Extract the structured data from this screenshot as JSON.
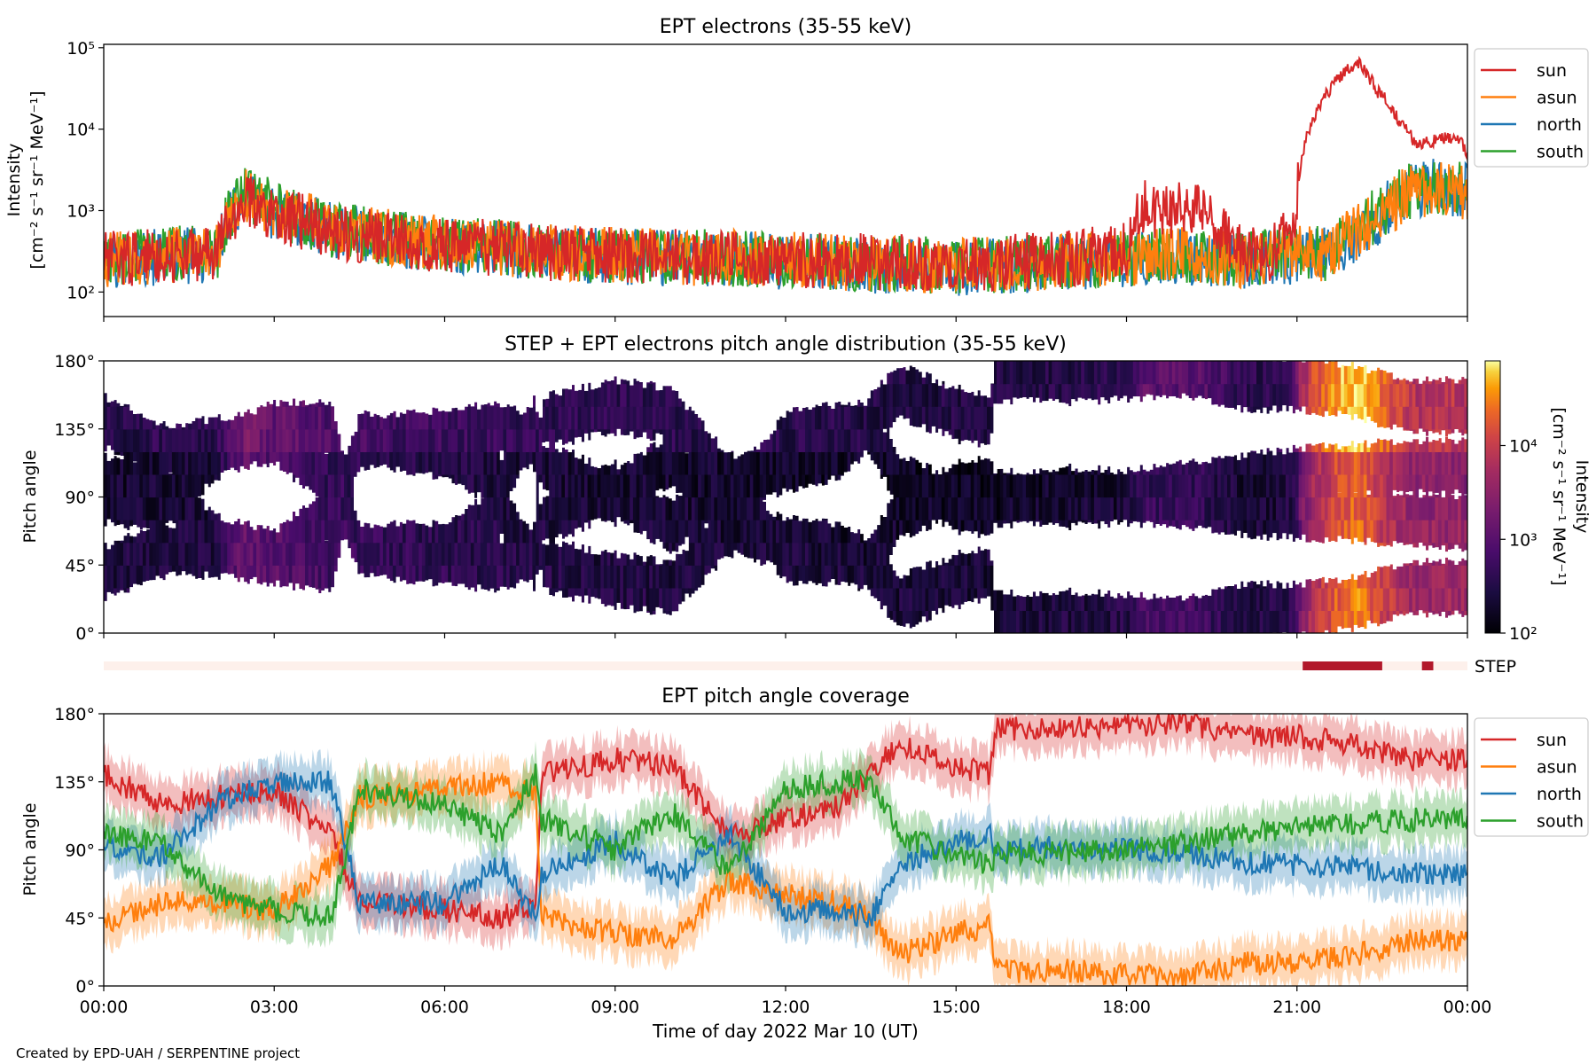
{
  "chart_data": [
    {
      "type": "line",
      "title": "EPT electrons (35-55 keV)",
      "ylabel_line1": "Intensity",
      "ylabel_line2": "[cm⁻² s⁻¹ sr⁻¹ MeV⁻¹]",
      "yscale": "log",
      "ylim": [
        50,
        110000
      ],
      "yticks": [
        {
          "value": 100,
          "label": "10²"
        },
        {
          "value": 1000,
          "label": "10³"
        },
        {
          "value": 10000,
          "label": "10⁴"
        },
        {
          "value": 100000,
          "label": "10⁵"
        }
      ],
      "xlim_hours": [
        0,
        24
      ],
      "legend_position": "outside-upper-right",
      "series": [
        {
          "name": "sun",
          "color": "#d62728",
          "points": [
            [
              0,
              250
            ],
            [
              1,
              280
            ],
            [
              2,
              300
            ],
            [
              2.5,
              1300
            ],
            [
              3,
              900
            ],
            [
              4,
              550
            ],
            [
              5,
              450
            ],
            [
              6,
              380
            ],
            [
              7,
              340
            ],
            [
              8,
              300
            ],
            [
              9,
              280
            ],
            [
              10,
              270
            ],
            [
              11,
              260
            ],
            [
              12,
              250
            ],
            [
              13,
              240
            ],
            [
              14,
              230
            ],
            [
              15,
              220
            ],
            [
              16,
              240
            ],
            [
              17,
              260
            ],
            [
              18,
              330
            ],
            [
              18.3,
              1100
            ],
            [
              18.7,
              900
            ],
            [
              19.1,
              1100
            ],
            [
              19.5,
              700
            ],
            [
              20,
              300
            ],
            [
              20.5,
              280
            ],
            [
              20.9,
              500
            ],
            [
              21,
              1200
            ],
            [
              21.2,
              9000
            ],
            [
              21.5,
              25000
            ],
            [
              21.8,
              48000
            ],
            [
              22.1,
              62000
            ],
            [
              22.4,
              30000
            ],
            [
              22.8,
              12000
            ],
            [
              23.1,
              6500
            ],
            [
              23.5,
              7500
            ],
            [
              23.8,
              8000
            ],
            [
              24,
              5000
            ]
          ]
        },
        {
          "name": "asun",
          "color": "#ff7f0e",
          "points": [
            [
              0,
              250
            ],
            [
              1,
              280
            ],
            [
              2,
              300
            ],
            [
              2.5,
              1500
            ],
            [
              3,
              1000
            ],
            [
              4,
              600
            ],
            [
              5,
              480
            ],
            [
              6,
              400
            ],
            [
              7,
              350
            ],
            [
              8,
              300
            ],
            [
              9,
              280
            ],
            [
              10,
              270
            ],
            [
              11,
              260
            ],
            [
              12,
              250
            ],
            [
              13,
              230
            ],
            [
              14,
              220
            ],
            [
              15,
              210
            ],
            [
              16,
              220
            ],
            [
              17,
              240
            ],
            [
              18,
              260
            ],
            [
              19,
              280
            ],
            [
              20,
              250
            ],
            [
              21,
              300
            ],
            [
              21.5,
              300
            ],
            [
              22,
              500
            ],
            [
              22.5,
              900
            ],
            [
              23,
              1700
            ],
            [
              23.5,
              1900
            ],
            [
              24,
              1700
            ]
          ]
        },
        {
          "name": "north",
          "color": "#1f77b4",
          "points": [
            [
              0,
              240
            ],
            [
              1,
              270
            ],
            [
              2,
              290
            ],
            [
              2.5,
              1400
            ],
            [
              3,
              950
            ],
            [
              4,
              560
            ],
            [
              5,
              450
            ],
            [
              6,
              380
            ],
            [
              7,
              340
            ],
            [
              8,
              290
            ],
            [
              9,
              270
            ],
            [
              10,
              260
            ],
            [
              11,
              250
            ],
            [
              12,
              240
            ],
            [
              13,
              220
            ],
            [
              14,
              210
            ],
            [
              15,
              200
            ],
            [
              16,
              210
            ],
            [
              17,
              230
            ],
            [
              18,
              250
            ],
            [
              19,
              270
            ],
            [
              20,
              240
            ],
            [
              21,
              280
            ],
            [
              21.5,
              280
            ],
            [
              22,
              480
            ],
            [
              22.5,
              900
            ],
            [
              23,
              1800
            ],
            [
              23.5,
              2000
            ],
            [
              24,
              1800
            ]
          ]
        },
        {
          "name": "south",
          "color": "#2ca02c",
          "points": [
            [
              0,
              260
            ],
            [
              1,
              290
            ],
            [
              2,
              310
            ],
            [
              2.5,
              1700
            ],
            [
              3,
              1000
            ],
            [
              4,
              580
            ],
            [
              5,
              460
            ],
            [
              6,
              390
            ],
            [
              7,
              350
            ],
            [
              8,
              300
            ],
            [
              9,
              280
            ],
            [
              10,
              270
            ],
            [
              11,
              260
            ],
            [
              12,
              250
            ],
            [
              13,
              230
            ],
            [
              14,
              220
            ],
            [
              15,
              210
            ],
            [
              16,
              220
            ],
            [
              17,
              240
            ],
            [
              18,
              260
            ],
            [
              19,
              280
            ],
            [
              20,
              250
            ],
            [
              21,
              290
            ],
            [
              21.5,
              290
            ],
            [
              22,
              520
            ],
            [
              22.5,
              950
            ],
            [
              23,
              1750
            ],
            [
              23.5,
              1950
            ],
            [
              24,
              1750
            ]
          ]
        }
      ]
    },
    {
      "type": "heatmap",
      "title": "STEP + EPT electrons pitch angle distribution (35-55 keV)",
      "ylabel": "Pitch angle",
      "ylim": [
        0,
        180
      ],
      "yticks": [
        "0°",
        "45°",
        "90°",
        "135°",
        "180°"
      ],
      "colorbar_label_line1": "Intensity",
      "colorbar_label_line2": "[cm⁻² s⁻¹ sr⁻¹ MeV⁻¹]",
      "colorbar_scale": "log",
      "colorbar_range": [
        100,
        80000
      ],
      "colorbar_ticks": [
        {
          "value": 100,
          "label": "10²"
        },
        {
          "value": 1000,
          "label": "10³"
        },
        {
          "value": 10000,
          "label": "10⁴"
        }
      ],
      "colormap": "inferno"
    },
    {
      "type": "bar",
      "label": "STEP",
      "intervals_hours": [
        [
          21.1,
          22.5
        ],
        [
          23.2,
          23.4
        ]
      ],
      "active_color": "#b2182b",
      "inactive_color": "#fdf0eb"
    },
    {
      "type": "area",
      "title": "EPT pitch angle coverage",
      "ylabel": "Pitch angle",
      "ylim": [
        0,
        180
      ],
      "yticks": [
        "0°",
        "45°",
        "90°",
        "135°",
        "180°"
      ],
      "xlabel": "Time of day 2022 Mar 10 (UT)",
      "xticks": [
        "00:00",
        "03:00",
        "06:00",
        "09:00",
        "12:00",
        "15:00",
        "18:00",
        "21:00",
        "00:00"
      ],
      "legend_position": "outside-upper-right",
      "band_halfwidth_deg": 15,
      "series": [
        {
          "name": "sun",
          "color": "#d62728",
          "points": [
            [
              0,
              140
            ],
            [
              1,
              120
            ],
            [
              2,
              125
            ],
            [
              3,
              130
            ],
            [
              4,
              100
            ],
            [
              4.5,
              55
            ],
            [
              6,
              50
            ],
            [
              7,
              45
            ],
            [
              7.6,
              55
            ],
            [
              7.7,
              140
            ],
            [
              9,
              150
            ],
            [
              10,
              145
            ],
            [
              11,
              100
            ],
            [
              12,
              110
            ],
            [
              13,
              120
            ],
            [
              13.5,
              140
            ],
            [
              14,
              160
            ],
            [
              15,
              145
            ],
            [
              15.6,
              140
            ],
            [
              15.7,
              170
            ],
            [
              17,
              170
            ],
            [
              18,
              172
            ],
            [
              19,
              175
            ],
            [
              20,
              165
            ],
            [
              21,
              165
            ],
            [
              22,
              160
            ],
            [
              23,
              150
            ],
            [
              24,
              150
            ]
          ]
        },
        {
          "name": "asun",
          "color": "#ff7f0e",
          "points": [
            [
              0,
              40
            ],
            [
              1,
              55
            ],
            [
              2,
              55
            ],
            [
              3,
              50
            ],
            [
              4,
              80
            ],
            [
              4.5,
              125
            ],
            [
              6,
              130
            ],
            [
              7,
              135
            ],
            [
              7.6,
              125
            ],
            [
              7.7,
              45
            ],
            [
              9,
              35
            ],
            [
              10,
              30
            ],
            [
              11,
              70
            ],
            [
              12,
              60
            ],
            [
              13,
              55
            ],
            [
              13.5,
              45
            ],
            [
              14,
              20
            ],
            [
              15,
              35
            ],
            [
              15.6,
              40
            ],
            [
              15.7,
              10
            ],
            [
              17,
              10
            ],
            [
              18,
              8
            ],
            [
              19,
              5
            ],
            [
              20,
              15
            ],
            [
              21,
              15
            ],
            [
              22,
              20
            ],
            [
              23,
              30
            ],
            [
              24,
              30
            ]
          ]
        },
        {
          "name": "north",
          "color": "#1f77b4",
          "points": [
            [
              0,
              90
            ],
            [
              1,
              85
            ],
            [
              2,
              120
            ],
            [
              3,
              135
            ],
            [
              4,
              135
            ],
            [
              4.5,
              55
            ],
            [
              6,
              55
            ],
            [
              7,
              80
            ],
            [
              7.6,
              45
            ],
            [
              7.7,
              75
            ],
            [
              9,
              95
            ],
            [
              10,
              70
            ],
            [
              11,
              100
            ],
            [
              12,
              50
            ],
            [
              13,
              50
            ],
            [
              13.5,
              45
            ],
            [
              14,
              80
            ],
            [
              15,
              95
            ],
            [
              15.6,
              100
            ],
            [
              15.7,
              90
            ],
            [
              17,
              92
            ],
            [
              18,
              90
            ],
            [
              19,
              88
            ],
            [
              20,
              82
            ],
            [
              21,
              80
            ],
            [
              22,
              78
            ],
            [
              23,
              75
            ],
            [
              24,
              73
            ]
          ]
        },
        {
          "name": "south",
          "color": "#2ca02c",
          "points": [
            [
              0,
              100
            ],
            [
              1,
              95
            ],
            [
              2,
              60
            ],
            [
              3,
              50
            ],
            [
              4,
              45
            ],
            [
              4.5,
              130
            ],
            [
              6,
              120
            ],
            [
              7,
              100
            ],
            [
              7.6,
              140
            ],
            [
              7.7,
              110
            ],
            [
              9,
              90
            ],
            [
              10,
              115
            ],
            [
              11,
              75
            ],
            [
              12,
              130
            ],
            [
              13,
              135
            ],
            [
              13.5,
              135
            ],
            [
              14,
              100
            ],
            [
              15,
              85
            ],
            [
              15.6,
              80
            ],
            [
              15.7,
              88
            ],
            [
              17,
              88
            ],
            [
              18,
              90
            ],
            [
              19,
              95
            ],
            [
              20,
              100
            ],
            [
              21,
              105
            ],
            [
              22,
              108
            ],
            [
              23,
              110
            ],
            [
              24,
              110
            ]
          ]
        }
      ]
    }
  ],
  "footer": {
    "credit": "Created by EPD-UAH / SERPENTINE project"
  }
}
